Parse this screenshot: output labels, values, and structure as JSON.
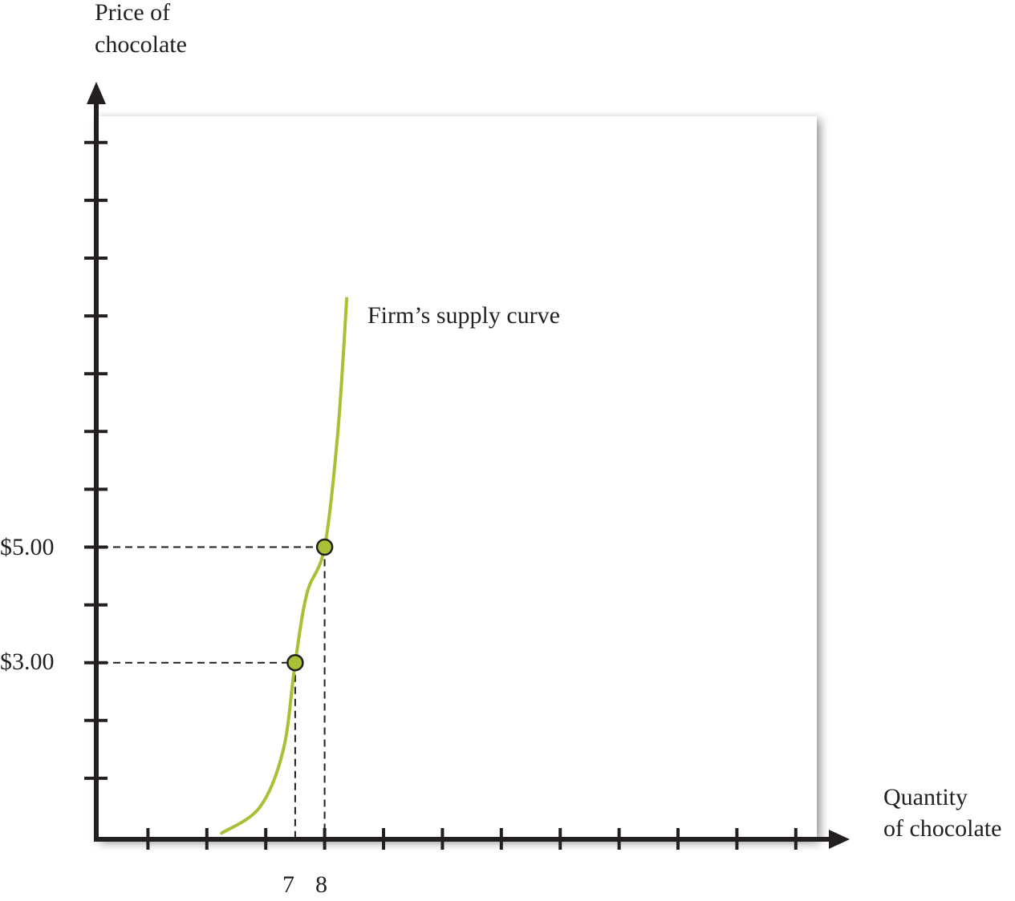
{
  "chart_data": {
    "type": "line",
    "ylabel_lines": [
      "Price of",
      "chocolate"
    ],
    "xlabel_lines": [
      "Quantity",
      "of chocolate"
    ],
    "x_ticks": 12,
    "y_ticks": 12,
    "x_tick_labels": [
      {
        "x": 7,
        "label": "7"
      },
      {
        "x": 8,
        "label": "8"
      }
    ],
    "y_tick_labels": [
      {
        "y": 5,
        "label": "$5.00"
      },
      {
        "y": 3,
        "label": "$3.00"
      }
    ],
    "series": [
      {
        "name": "Firm’s supply curve",
        "color": "#a8c034",
        "points": [
          [
            4.5,
            0.05
          ],
          [
            5.8,
            0.5
          ],
          [
            6.6,
            1.5
          ],
          [
            7.0,
            3.0
          ],
          [
            7.4,
            4.2
          ],
          [
            8.0,
            5.0
          ],
          [
            8.45,
            7.0
          ],
          [
            8.75,
            9.3
          ]
        ]
      }
    ],
    "highlighted_points": [
      {
        "x": 7,
        "y": 3
      },
      {
        "x": 8,
        "y": 5
      }
    ],
    "guide_lines": "dashed",
    "grid": false,
    "legend": "none"
  }
}
